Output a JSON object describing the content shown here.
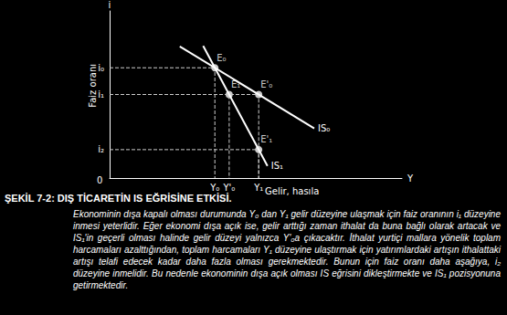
{
  "chart_data": {
    "type": "line",
    "title": "ŞEKİL 7-2: DIŞ TİCARETİN IS EĞRİSİNE ETKİSİ.",
    "text": "Ekonominin dışa kapalı olması durumunda Y₀ dan Y₁ gelir düzeyine ulaşmak için faiz oranının i₁ düzeyine inmesi yeterlidir. Eğer ekonomi dışa açık ise, gelir arttığı zaman ithalat da buna bağlı olarak artacak ve IS₁'in geçerli olması halinde gelir düzeyi yalnızca Y'₀a çıkacaktır. İthalat yurtiçi mallara yönelik toplam harcamaları azalttığından, toplam harcamaları Y₁ düzeyine ulaştırmak için yatırımlardaki artışın ithalattaki artışı telafi edecek kadar daha fazla olması gerekmektedir. Bunun için faiz oranı daha aşağıya, i₂ düzeyine inmelidir. Bu nedenle ekonominin dışa açık olması IS eğrisini dikleştirmekte ve IS₁ pozisyonuna getirmektedir.",
    "x_label": "Gelir, hasıla",
    "x_axis_end": "Y",
    "y_label": "Faiz oranı",
    "y_axis_end": "i",
    "origin_label": "0",
    "xlim": [
      0,
      100
    ],
    "ylim": [
      0,
      100
    ],
    "xticks": [
      {
        "value": 36,
        "label": "Y₀"
      },
      {
        "value": 40.9,
        "label": "Y'₀"
      },
      {
        "value": 51,
        "label": "Y₁"
      }
    ],
    "yticks": [
      {
        "value": 17,
        "label": "i₂"
      },
      {
        "value": 50,
        "label": "i₁"
      },
      {
        "value": 66,
        "label": "i₀"
      }
    ],
    "grid": false,
    "series": [
      {
        "name": "IS₀",
        "color": "#ffffff",
        "line_style": "solid",
        "x": [
          24,
          70
        ],
        "values": [
          78.8,
          29.7
        ]
      },
      {
        "name": "IS₁",
        "color": "#ffffff",
        "line_style": "solid",
        "x": [
          32,
          54
        ],
        "values": [
          79.1,
          7.2
        ]
      }
    ],
    "points": [
      {
        "label": "E₀",
        "x": 36,
        "y": 66
      },
      {
        "label": "E₁",
        "x": 40.9,
        "y": 50
      },
      {
        "label": "E'₀",
        "x": 51,
        "y": 50
      },
      {
        "label": "E'₁",
        "x": 51,
        "y": 17
      }
    ]
  }
}
